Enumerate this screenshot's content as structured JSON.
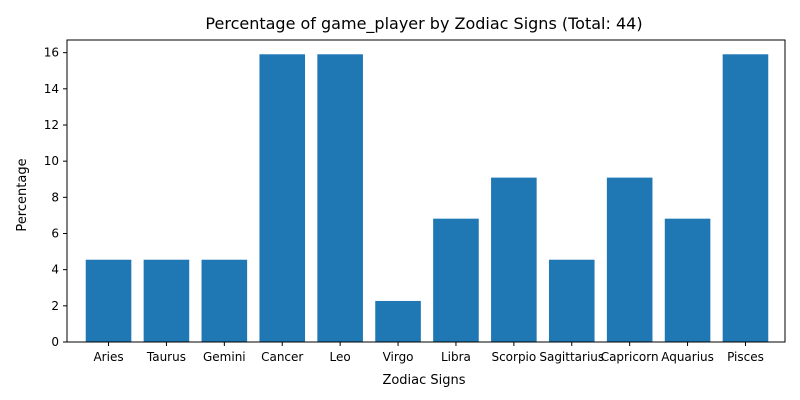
{
  "chart_data": {
    "type": "bar",
    "title": "Percentage of game_player by Zodiac Signs (Total: 44)",
    "xlabel": "Zodiac Signs",
    "ylabel": "Percentage",
    "categories": [
      "Aries",
      "Taurus",
      "Gemini",
      "Cancer",
      "Leo",
      "Virgo",
      "Libra",
      "Scorpio",
      "Sagittarius",
      "Capricorn",
      "Aquarius",
      "Pisces"
    ],
    "values": [
      4.55,
      4.55,
      4.55,
      15.91,
      15.91,
      2.27,
      6.82,
      9.09,
      4.55,
      9.09,
      6.82,
      15.91
    ],
    "ylim": [
      0,
      16.7
    ],
    "yticks": [
      0,
      2,
      4,
      6,
      8,
      10,
      12,
      14,
      16
    ],
    "grid": false,
    "bar_color": "#1f77b4"
  }
}
